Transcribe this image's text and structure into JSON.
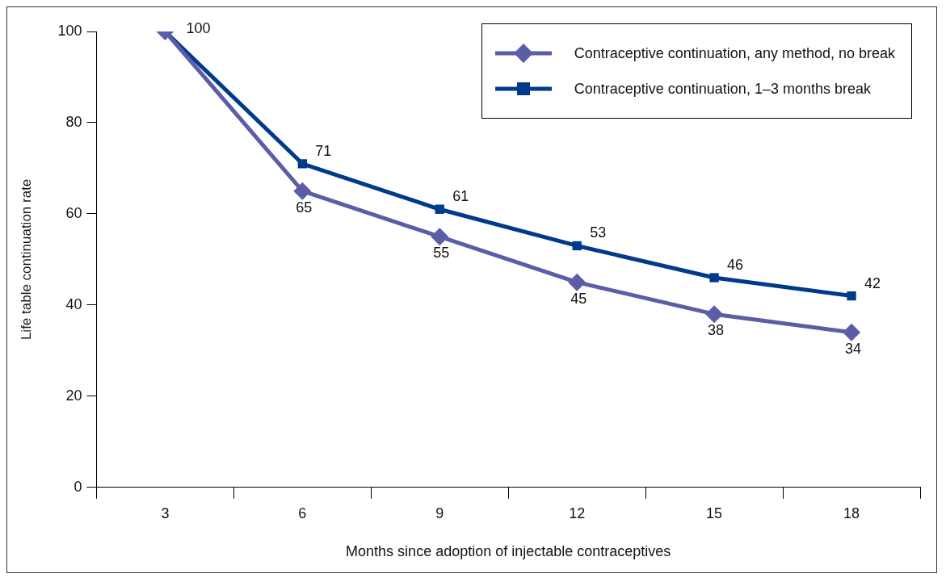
{
  "chart_data": {
    "type": "line",
    "xlabel": "Months since adoption of injectable contraceptives",
    "ylabel": "Life table continuation rate",
    "categories": [
      "3",
      "6",
      "9",
      "12",
      "15",
      "18"
    ],
    "ylim": [
      0,
      100
    ],
    "yticks": [
      0,
      20,
      40,
      60,
      80,
      100
    ],
    "grid": false,
    "legend": "top right",
    "line_style": "solid",
    "series": [
      {
        "name": "Contraceptive continuation, any method, no break",
        "color": "#5b5ea6",
        "marker": "diamond",
        "values": [
          100,
          65,
          55,
          45,
          38,
          34
        ],
        "value_labels": [
          null,
          "65",
          "55",
          "45",
          "38",
          "34"
        ]
      },
      {
        "name": "Contraceptive continuation, 1–3 months break",
        "color": "#003a8c",
        "marker": "square",
        "values": [
          100,
          71,
          61,
          53,
          46,
          42
        ],
        "value_labels": [
          "100",
          "71",
          "61",
          "53",
          "46",
          "42"
        ]
      }
    ]
  }
}
